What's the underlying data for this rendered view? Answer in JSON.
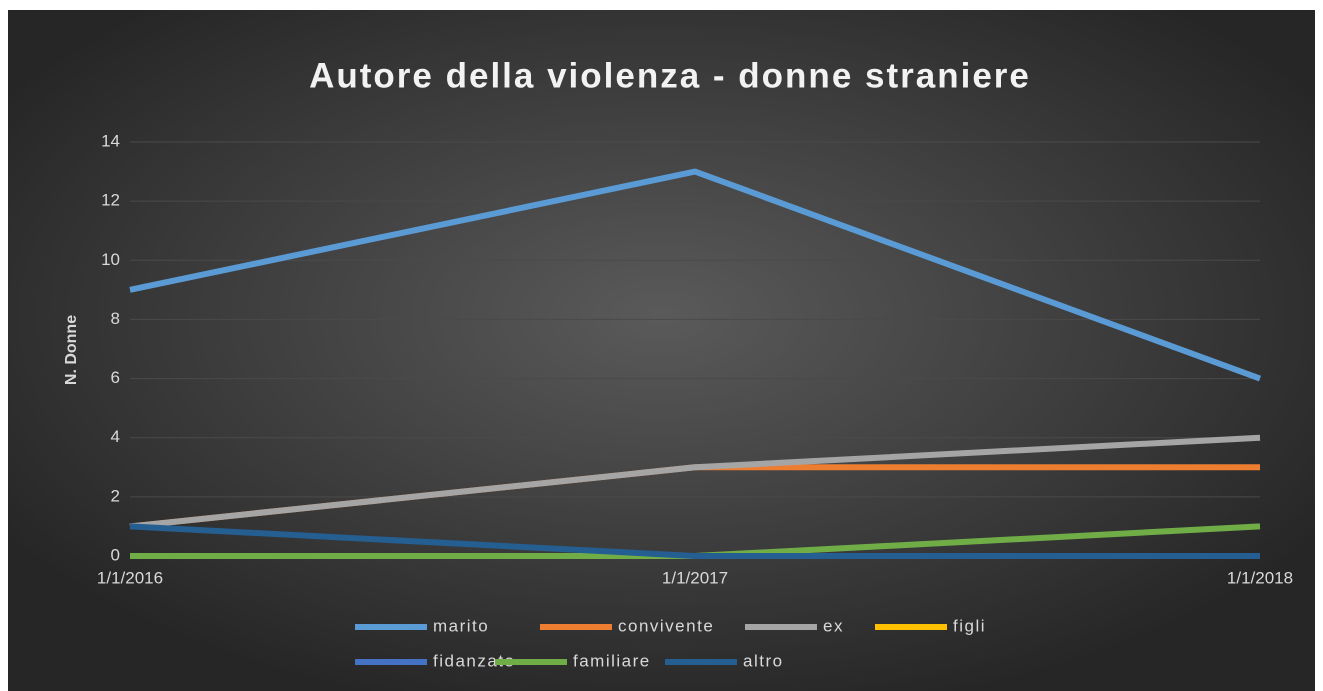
{
  "chart_data": {
    "type": "line",
    "title": "Autore della violenza - donne straniere",
    "y_label": "N. Donne",
    "categories": [
      "1/1/2016",
      "1/1/2017",
      "1/1/2018"
    ],
    "series": [
      {
        "name": "marito",
        "color": "#5b9bd5",
        "values": [
          9,
          13,
          6
        ]
      },
      {
        "name": "convivente",
        "color": "#ed7d31",
        "values": [
          1,
          3,
          3
        ]
      },
      {
        "name": "ex",
        "color": "#a5a5a5",
        "values": [
          1,
          3,
          4
        ]
      },
      {
        "name": "figli",
        "color": "#ffc000",
        "values": [
          0,
          0,
          0
        ]
      },
      {
        "name": "fidanzato",
        "color": "#4472c4",
        "values": [
          0,
          0,
          0
        ]
      },
      {
        "name": "familiare",
        "color": "#70ad47",
        "values": [
          0,
          0,
          1
        ]
      },
      {
        "name": "altro",
        "color": "#255e91",
        "values": [
          1,
          0,
          0
        ]
      }
    ],
    "ylim": [
      0,
      14
    ],
    "yticks": [
      0,
      2,
      4,
      6,
      8,
      10,
      12,
      14
    ],
    "grid": true,
    "legend": "bottom"
  }
}
